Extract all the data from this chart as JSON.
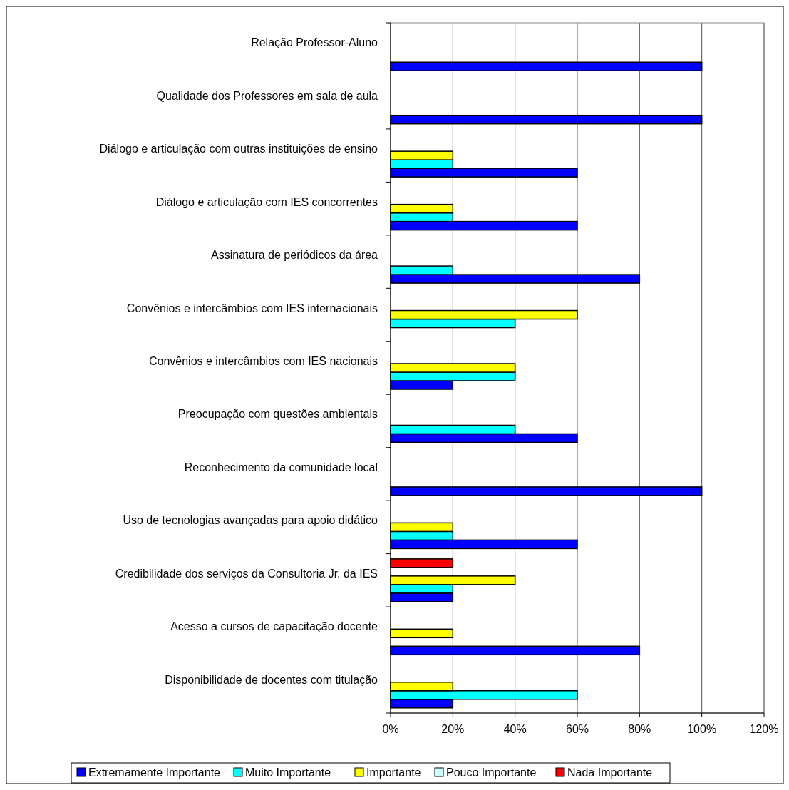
{
  "chart_data": {
    "type": "bar",
    "orientation": "horizontal",
    "categories": [
      "Relação Professor-Aluno",
      "Qualidade dos Professores em sala de aula",
      "Diálogo e articulação com outras instituições de ensino",
      "Diálogo e articulação com IES concorrentes",
      "Assinatura de periódicos da área",
      "Convênios e intercâmbios com IES internacionais",
      "Convênios e intercâmbios com IES nacionais",
      "Preocupação com questões ambientais",
      "Reconhecimento da comunidade local",
      "Uso de tecnologias avançadas para apoio didático",
      "Credibilidade dos serviços da Consultoria Jr. da IES",
      "Acesso a cursos de capacitação docente",
      "Disponibilidade de docentes com titulação"
    ],
    "series": [
      {
        "name": "Extremamente Importante",
        "color": "#0000ff",
        "values": [
          100,
          100,
          60,
          60,
          80,
          0,
          20,
          60,
          100,
          60,
          20,
          80,
          20
        ]
      },
      {
        "name": "Muito Importante",
        "color": "#00ffff",
        "values": [
          0,
          0,
          20,
          20,
          20,
          40,
          40,
          40,
          0,
          20,
          20,
          0,
          60
        ]
      },
      {
        "name": "Importante",
        "color": "#ffff00",
        "values": [
          0,
          0,
          20,
          20,
          0,
          60,
          40,
          0,
          0,
          20,
          40,
          20,
          20
        ]
      },
      {
        "name": "Pouco Importante",
        "color": "#ccffff",
        "values": [
          0,
          0,
          0,
          0,
          0,
          0,
          0,
          0,
          0,
          0,
          0,
          0,
          0
        ]
      },
      {
        "name": "Nada Importante",
        "color": "#ff0000",
        "values": [
          0,
          0,
          0,
          0,
          0,
          0,
          0,
          0,
          0,
          0,
          20,
          0,
          0
        ]
      }
    ],
    "xlim": [
      0,
      120
    ],
    "xticks": [
      {
        "value": 0,
        "label": "0%"
      },
      {
        "value": 20,
        "label": "20%"
      },
      {
        "value": 40,
        "label": "40%"
      },
      {
        "value": 60,
        "label": "60%"
      },
      {
        "value": 80,
        "label": "80%"
      },
      {
        "value": 100,
        "label": "100%"
      },
      {
        "value": 120,
        "label": "120%"
      }
    ],
    "grid": "x",
    "legend": "bottom"
  }
}
